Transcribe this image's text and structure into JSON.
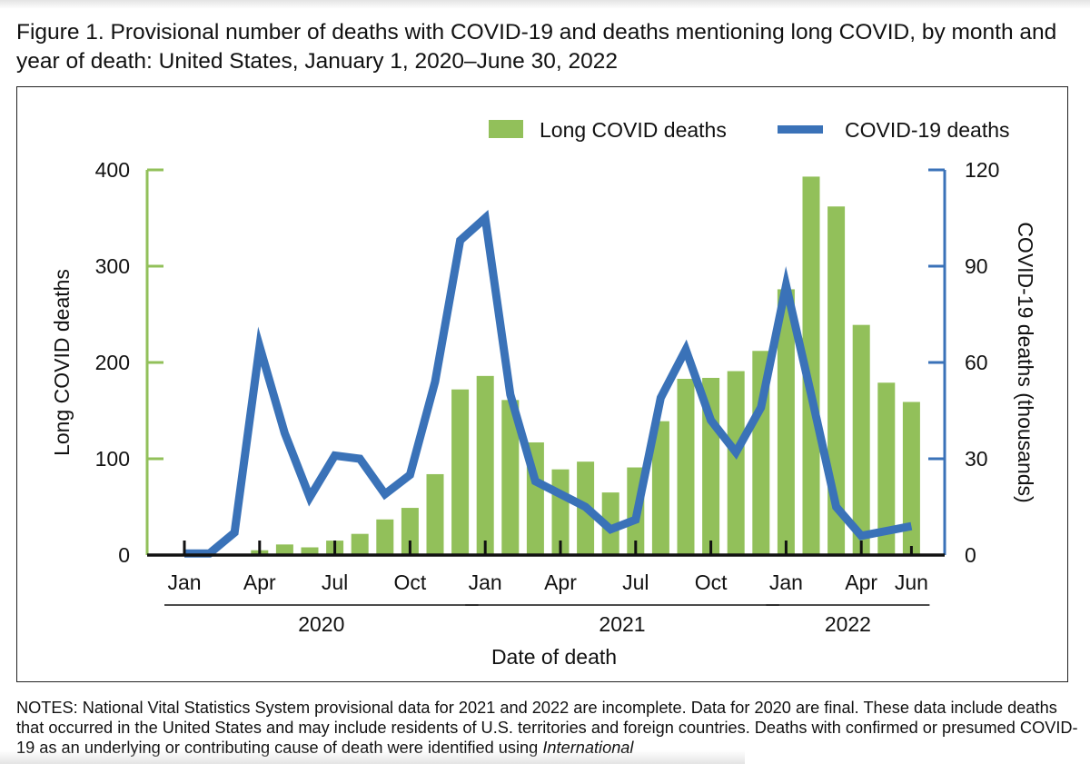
{
  "figure": {
    "title": "Figure 1. Provisional number of deaths with COVID-19 and deaths mentioning long COVID, by month and year of death: United States, January 1, 2020–June 30, 2022",
    "notes_prefix": "NOTES: National Vital Statistics System provisional data for 2021 and 2022 are incomplete. Data for 2020 are final. These data include deaths that occurred in the United States and may include residents of U.S. territories and foreign countries. Deaths with confirmed or presumed COVID-19 as an underlying or contributing cause of death were identified using ",
    "notes_italic": "International"
  },
  "colors": {
    "long_covid": "#92c05a",
    "covid19": "#3a72b8",
    "axis_black": "#111111"
  },
  "chart_data": {
    "type": "bar",
    "title": "Provisional number of deaths with COVID-19 and deaths mentioning long COVID, by month and year of death: United States, January 1, 2020–June 30, 2022",
    "xlabel": "Date of death",
    "ylabel": "Long COVID deaths",
    "y2label": "COVID-19 deaths (thousands)",
    "ylim": [
      0,
      400
    ],
    "y2lim": [
      0,
      120
    ],
    "yticks": [
      0,
      100,
      200,
      300,
      400
    ],
    "y2ticks": [
      0,
      30,
      60,
      90,
      120
    ],
    "grid": false,
    "legend_position": "top-right",
    "x": [
      "Jan 2020",
      "Feb 2020",
      "Mar 2020",
      "Apr 2020",
      "May 2020",
      "Jun 2020",
      "Jul 2020",
      "Aug 2020",
      "Sep 2020",
      "Oct 2020",
      "Nov 2020",
      "Dec 2020",
      "Jan 2021",
      "Feb 2021",
      "Mar 2021",
      "Apr 2021",
      "May 2021",
      "Jun 2021",
      "Jul 2021",
      "Aug 2021",
      "Sep 2021",
      "Oct 2021",
      "Nov 2021",
      "Dec 2021",
      "Jan 2022",
      "Feb 2022",
      "Mar 2022",
      "Apr 2022",
      "May 2022",
      "Jun 2022"
    ],
    "xtick_labels": [
      {
        "index": 0,
        "label": "Jan"
      },
      {
        "index": 3,
        "label": "Apr"
      },
      {
        "index": 6,
        "label": "Jul"
      },
      {
        "index": 9,
        "label": "Oct"
      },
      {
        "index": 12,
        "label": "Jan"
      },
      {
        "index": 15,
        "label": "Apr"
      },
      {
        "index": 18,
        "label": "Jul"
      },
      {
        "index": 21,
        "label": "Oct"
      },
      {
        "index": 24,
        "label": "Jan"
      },
      {
        "index": 27,
        "label": "Apr"
      },
      {
        "index": 29,
        "label": "Jun"
      }
    ],
    "year_groups": [
      {
        "label": "2020",
        "start": 0,
        "end": 11
      },
      {
        "label": "2021",
        "start": 12,
        "end": 23
      },
      {
        "label": "2022",
        "start": 24,
        "end": 29
      }
    ],
    "series": [
      {
        "name": "Long COVID deaths",
        "type": "bar",
        "axis": "left",
        "values": [
          0,
          0,
          0,
          5,
          11,
          8,
          15,
          22,
          37,
          49,
          84,
          172,
          186,
          161,
          117,
          89,
          97,
          65,
          91,
          139,
          183,
          184,
          191,
          212,
          276,
          393,
          362,
          239,
          179,
          159
        ]
      },
      {
        "name": "COVID-19 deaths",
        "type": "line",
        "axis": "right",
        "unit": "thousands",
        "values": [
          0.5,
          0.5,
          7,
          65,
          38,
          18,
          31,
          30,
          19,
          25,
          54,
          98,
          105,
          50,
          23,
          19,
          15,
          8,
          11,
          49,
          64,
          42,
          32,
          46,
          84,
          50,
          15,
          6,
          7.5,
          9
        ]
      }
    ]
  }
}
